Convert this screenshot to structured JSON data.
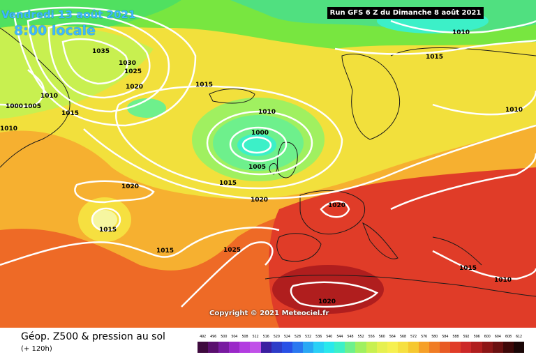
{
  "header": {
    "valid_date": "Vendredi 13 août 2021",
    "local_time": "8:00 locale",
    "run_info": "Run GFS 6 Z du Dimanche 8 août 2021"
  },
  "map": {
    "copyright": "Copyright © 2021 Meteociel.fr",
    "isobar_labels": [
      "1035",
      "1030",
      "1025",
      "1020",
      "1010",
      "1000",
      "1005",
      "1015",
      "1015",
      "1010",
      "1000",
      "1005",
      "1015",
      "1020",
      "1020",
      "1015",
      "1015",
      "1025",
      "1020",
      "1015",
      "1015",
      "1010",
      "1010",
      "1010",
      "1020",
      "1010"
    ]
  },
  "footer": {
    "caption": "Géop. Z500 & pression au sol",
    "forecast_offset": "(+ 120h)"
  },
  "legend": {
    "levels": [
      "492",
      "496",
      "500",
      "504",
      "508",
      "512",
      "516",
      "520",
      "524",
      "528",
      "532",
      "536",
      "540",
      "544",
      "548",
      "552",
      "556",
      "560",
      "564",
      "568",
      "572",
      "576",
      "580",
      "584",
      "588",
      "592",
      "596",
      "600",
      "604",
      "608",
      "612"
    ],
    "colors": [
      "#3e0a3e",
      "#5a0f6e",
      "#781aa0",
      "#9a28c8",
      "#b23ce0",
      "#c050e8",
      "#3a1ea0",
      "#2d3cc8",
      "#2850e6",
      "#2a78f0",
      "#2aa8f4",
      "#2ad0f6",
      "#2ae8ec",
      "#3cf0c8",
      "#6ef08c",
      "#a0f060",
      "#c8f050",
      "#e6f050",
      "#f6f050",
      "#f6e040",
      "#f6c830",
      "#f6a028",
      "#f07c24",
      "#e85a24",
      "#e03c28",
      "#cc2828",
      "#b01e1e",
      "#8c1616",
      "#6a1010",
      "#3e0808",
      "#1a0606"
    ]
  }
}
